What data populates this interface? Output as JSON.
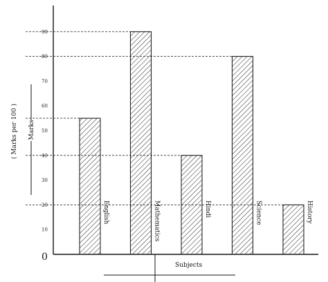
{
  "chart_data": {
    "type": "bar",
    "categories": [
      "English",
      "Mathematics",
      "Hindi",
      "Science",
      "History"
    ],
    "values": [
      55,
      90,
      40,
      80,
      20
    ],
    "ylim": [
      0,
      100
    ],
    "yticks": [
      "10",
      "20",
      "30",
      "40",
      "50",
      "60",
      "70",
      "80",
      "90"
    ],
    "origin_label": "0",
    "xlabel": "Subjects",
    "ylabel_outer": "( Marks per 100 )",
    "ylabel_inner": "Marks",
    "grid": false,
    "reference_lines": "dashed lines from y-axis to each bar top",
    "bar_fill": "diagonal hatching",
    "colors": {
      "bar_stroke": "#222222",
      "hatch": "#333333",
      "axis": "#111111"
    }
  }
}
